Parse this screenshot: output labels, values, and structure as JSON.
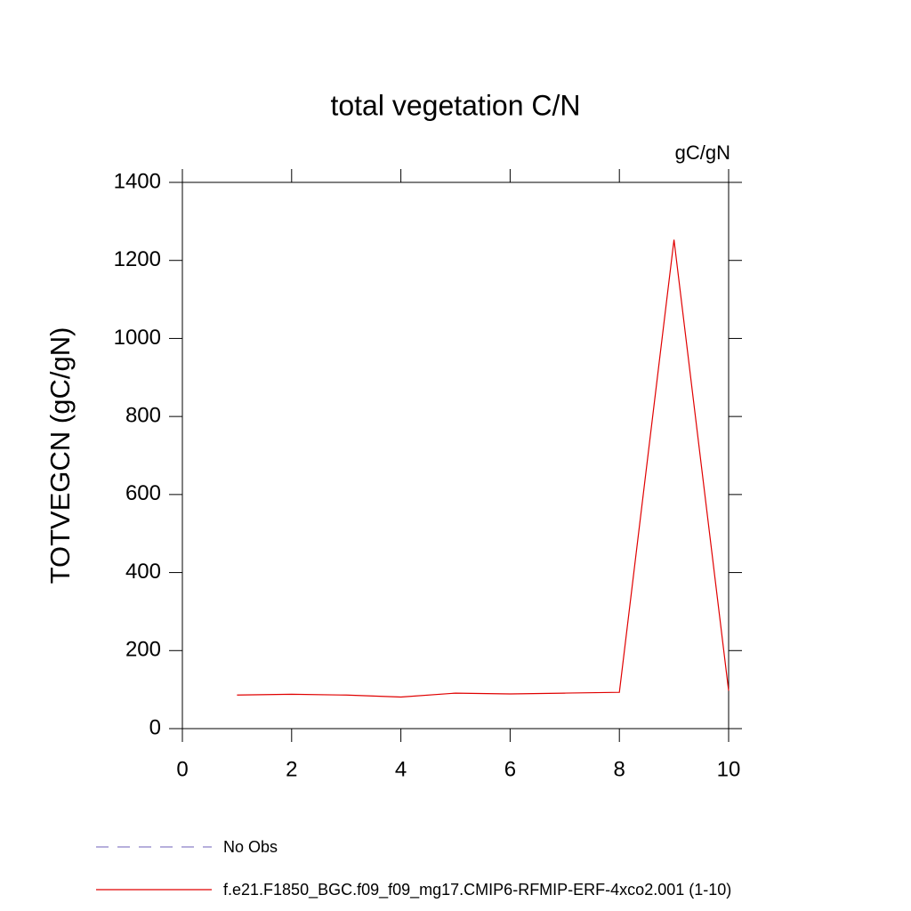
{
  "chart_data": {
    "type": "line",
    "title": "total vegetation C/N",
    "units": "gC/gN",
    "y_label": "TOTVEGCN  (gC/gN)",
    "x": [
      1,
      2,
      3,
      4,
      5,
      6,
      7,
      8,
      9,
      10
    ],
    "series": [
      {
        "name": "No Obs",
        "color": "#8a7fc8",
        "dashed": true,
        "values": [
          null,
          null,
          null,
          null,
          null,
          null,
          null,
          null,
          null,
          null
        ]
      },
      {
        "name": "f.e21.F1850_BGC.f09_f09_mg17.CMIP6-RFMIP-ERF-4xco2.001 (1-10)",
        "color": "#e00000",
        "dashed": false,
        "values": [
          86,
          88,
          86,
          81,
          91,
          89,
          91,
          93,
          1253,
          97
        ]
      }
    ],
    "xlim": [
      0,
      10
    ],
    "xticks": [
      0,
      2,
      4,
      6,
      8,
      10
    ],
    "ylim": [
      0,
      1400
    ],
    "yticks": [
      0,
      200,
      400,
      600,
      800,
      1000,
      1200,
      1400
    ],
    "grid": false
  }
}
